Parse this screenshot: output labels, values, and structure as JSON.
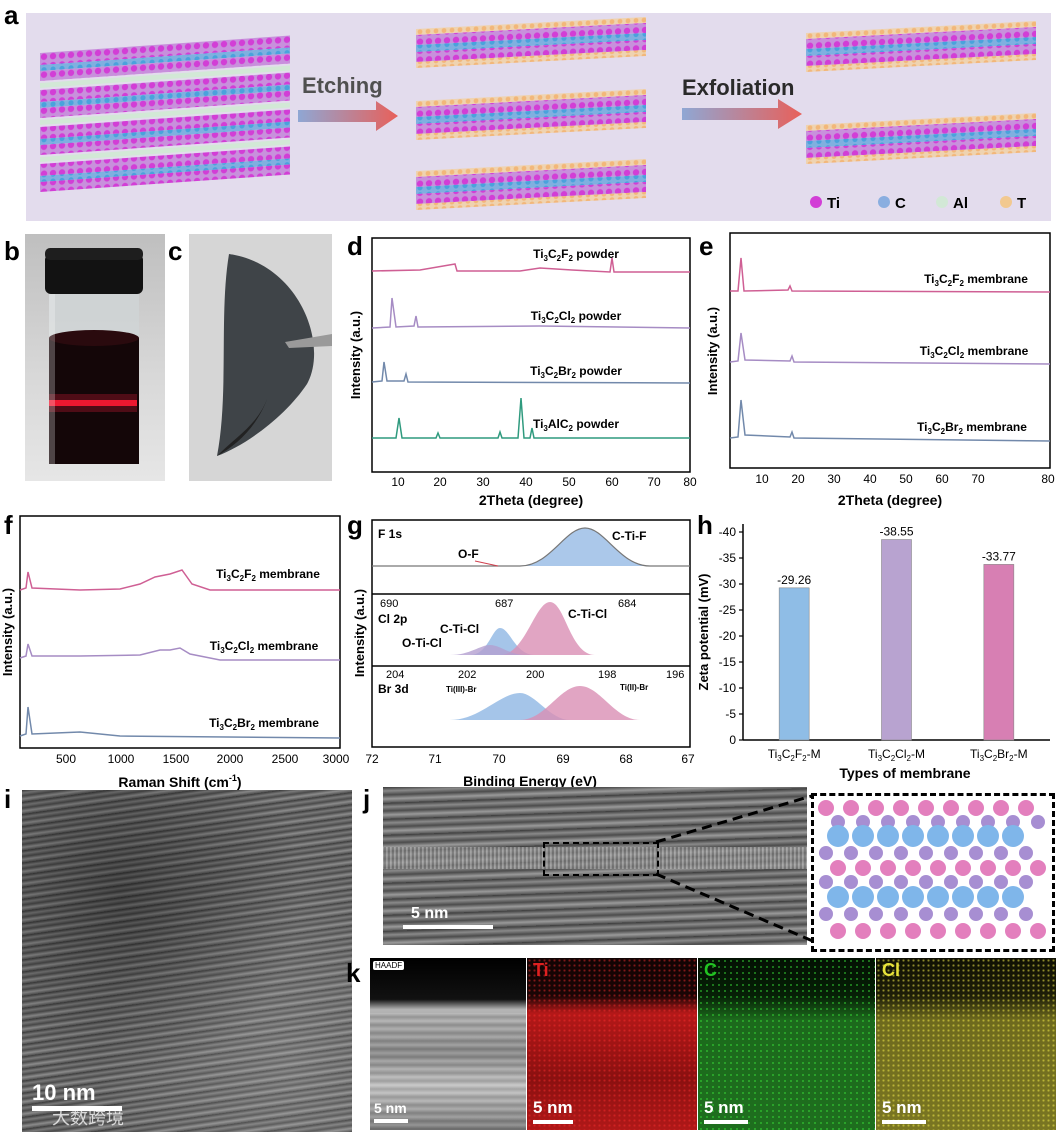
{
  "panel_labels": {
    "a": "a",
    "b": "b",
    "c": "c",
    "d": "d",
    "e": "e",
    "f": "f",
    "g": "g",
    "h": "h",
    "i": "i",
    "j": "j",
    "k": "k"
  },
  "panel_a": {
    "arrow1": "Etching",
    "arrow2": "Exfoliation",
    "legend": [
      {
        "label": "Ti",
        "color": "#d23ed6"
      },
      {
        "label": "C",
        "color": "#8aaee0"
      },
      {
        "label": "Al",
        "color": "#d2e8d6"
      },
      {
        "label": "T",
        "color": "#f2c990"
      }
    ]
  },
  "panel_d": {
    "xlabel": "2Theta (degree)",
    "ylabel": "Intensity (a.u.)",
    "xticks": [
      "10",
      "20",
      "30",
      "40",
      "50",
      "60",
      "70",
      "80"
    ],
    "series": [
      {
        "name_main": "Ti",
        "s1": "3",
        "m": "C",
        "s2": "2",
        "x": "F",
        "s3": "2",
        "tail": " powder",
        "color": "#cf5f94"
      },
      {
        "name_main": "Ti",
        "s1": "3",
        "m": "C",
        "s2": "2",
        "x": "Cl",
        "s3": "2",
        "tail": " powder",
        "color": "#a68cc4"
      },
      {
        "name_main": "Ti",
        "s1": "3",
        "m": "C",
        "s2": "2",
        "x": "Br",
        "s3": "2",
        "tail": " powder",
        "color": "#7289ab"
      },
      {
        "name_main": "Ti",
        "s1": "3",
        "m": "AlC",
        "s2": "2",
        "x": "",
        "s3": "",
        "tail": " powder",
        "color": "#2f9a7e"
      }
    ]
  },
  "panel_e": {
    "xlabel": "2Theta (degree)",
    "ylabel": "Intensity (a.u.)",
    "xticks": [
      "10",
      "20",
      "30",
      "40",
      "50",
      "60",
      "70",
      "80"
    ],
    "series": [
      {
        "x": "F",
        "tail": " membrane",
        "color": "#cf5f94"
      },
      {
        "x": "Cl",
        "tail": " membrane",
        "color": "#a68cc4"
      },
      {
        "x": "Br",
        "tail": " membrane",
        "color": "#7289ab"
      }
    ]
  },
  "panel_f": {
    "xlabel": "Raman Shift (cm",
    "xlabel_sup": "-1",
    "xlabel_end": ")",
    "ylabel": "Intensity (a.u.)",
    "xticks": [
      "500",
      "1000",
      "1500",
      "2000",
      "2500",
      "3000"
    ],
    "series": [
      {
        "x": "F",
        "tail": " membrane",
        "color": "#cf5f94"
      },
      {
        "x": "Cl",
        "tail": " membrane",
        "color": "#a68cc4"
      },
      {
        "x": "Br",
        "tail": " membrane",
        "color": "#7289ab"
      }
    ]
  },
  "panel_g": {
    "xlabel": "Binding Energy (eV)",
    "ylabel": "Intensity (a.u.)",
    "xticks": [
      "72",
      "71",
      "70",
      "69",
      "68",
      "67"
    ],
    "f1s": {
      "title": "F 1s",
      "peak1": "C-Ti-F",
      "peak2": "O-F"
    },
    "cl2p": {
      "title": "Cl 2p",
      "peak1": "C-Ti-Cl",
      "peak2": "C-Ti-Cl",
      "peak3": "O-Ti-Cl",
      "ticks": [
        "690",
        "687",
        "684"
      ]
    },
    "br3d": {
      "title": "Br 3d",
      "peak1": "Ti(III)-Br",
      "peak2": "Ti(II)-Br",
      "ticks": [
        "204",
        "202",
        "200",
        "198",
        "196"
      ]
    }
  },
  "chart_data": {
    "type": "bar",
    "categories": [
      "Ti3C2F2-M",
      "Ti3C2Cl2-M",
      "Ti3C2Br2-M"
    ],
    "values": [
      -29.26,
      -38.55,
      -33.77
    ],
    "value_labels": [
      "-29.26",
      "-38.55",
      "-33.77"
    ],
    "colors": [
      "#8fbde6",
      "#b8a3d0",
      "#d77fb3"
    ],
    "xlabel": "Types of membrane",
    "ylabel": "Zeta potential (mV)",
    "ylim": [
      0,
      -40
    ],
    "yticks": [
      "0",
      "-5",
      "-10",
      "-15",
      "-20",
      "-25",
      "-30",
      "-35",
      "-40"
    ],
    "cat_parts": [
      {
        "a": "Ti",
        "s1": "3",
        "b": "C",
        "s2": "2",
        "c": "F",
        "s3": "2",
        "d": "-M"
      },
      {
        "a": "Ti",
        "s1": "3",
        "b": "C",
        "s2": "2",
        "c": "Cl",
        "s3": "2",
        "d": "-M"
      },
      {
        "a": "Ti",
        "s1": "3",
        "b": "C",
        "s2": "2",
        "c": "Br",
        "s3": "2",
        "d": "-M"
      }
    ]
  },
  "panel_i": {
    "scale": "10 nm",
    "watermark": "大数跨境"
  },
  "panel_j": {
    "scale": "5 nm"
  },
  "panel_k": {
    "tiles": [
      {
        "label": "HAADF",
        "scale": "5 nm",
        "color": "#ffffff"
      },
      {
        "label": "Ti",
        "scale": "5 nm",
        "color": "#e02020"
      },
      {
        "label": "C",
        "scale": "5 nm",
        "color": "#22c322"
      },
      {
        "label": "Cl",
        "scale": "5 nm",
        "color": "#e8e23a"
      }
    ]
  }
}
